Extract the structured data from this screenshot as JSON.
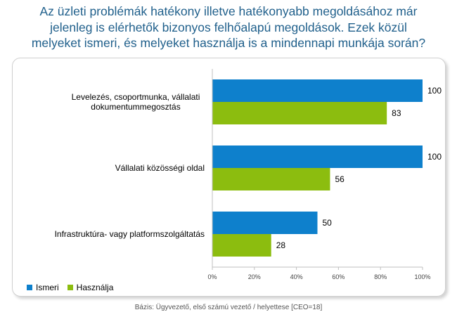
{
  "title_lines": [
    "Az üzleti problémák hatékony illetve hatékonyabb megoldásához már",
    "jelenleg is elérhetők bizonyos felhőalapú megoldások. Ezek közül",
    "melyeket ismeri, és melyeket használja is a mindennapi munkája során?"
  ],
  "footnote": "Bázis: Ügyvezető, első számú vezető / helyettese [CEO=18]",
  "colors": {
    "title": "#1f5f8b",
    "ismeri": "#0e80cc",
    "hasznalja": "#8cbd0f"
  },
  "chart_data": {
    "type": "bar",
    "orientation": "horizontal",
    "categories": [
      [
        "Levelezés, csoportmunka, vállalati",
        "dokumentummegosztás"
      ],
      [
        "Vállalati közösségi oldal"
      ],
      [
        "Infrastruktúra- vagy platformszolgáltatás"
      ]
    ],
    "series": [
      {
        "name": "Ismeri",
        "values": [
          100,
          100,
          50
        ],
        "color": "#0e80cc"
      },
      {
        "name": "Használja",
        "values": [
          83,
          56,
          28
        ],
        "color": "#8cbd0f"
      }
    ],
    "xlim": [
      0,
      100
    ],
    "xticks": [
      "0%",
      "20%",
      "40%",
      "60%",
      "80%",
      "100%"
    ],
    "grid": false,
    "legend_position": "bottom-left"
  }
}
